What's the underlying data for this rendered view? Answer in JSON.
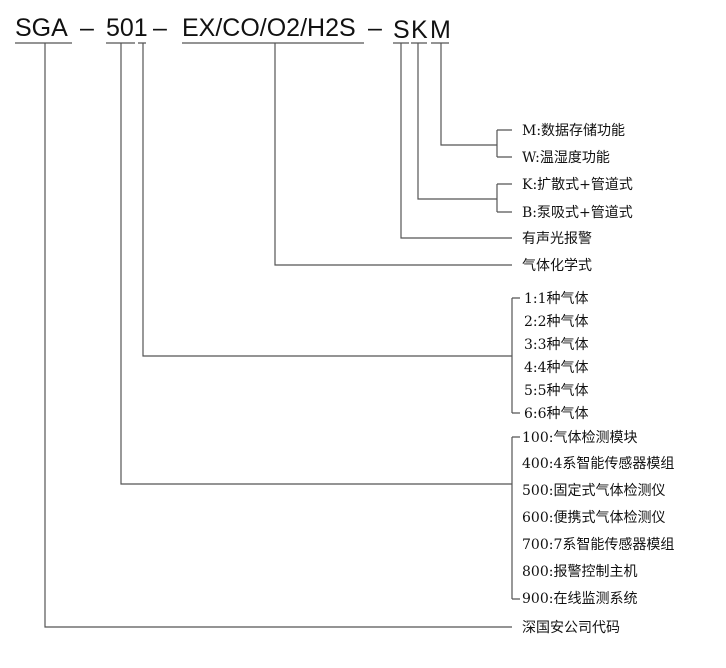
{
  "code": {
    "segments": [
      "SGA",
      "–",
      "501",
      "–",
      "EX/CO/O2/H2S",
      "–",
      "S",
      "K",
      "M"
    ]
  },
  "options": {
    "m_group": [
      "M:数据存储功能",
      "W:温湿度功能"
    ],
    "k_group": [
      "K:扩散式+管道式",
      "B:泵吸式+管道式"
    ],
    "s_label": "有声光报警",
    "gas_formula_label": "气体化学式",
    "gas_count": [
      "1:1种气体",
      "2:2种气体",
      "3:3种气体",
      "4:4种气体",
      "5:5种气体",
      "6:6种气体"
    ],
    "series": [
      "100:气体检测模块",
      "400:4系智能传感器模组",
      "500:固定式气体检测仪",
      "600:便携式气体检测仪",
      "700:7系智能传感器模组",
      "800:报警控制主机",
      "900:在线监测系统"
    ],
    "company_label": "深国安公司代码"
  }
}
